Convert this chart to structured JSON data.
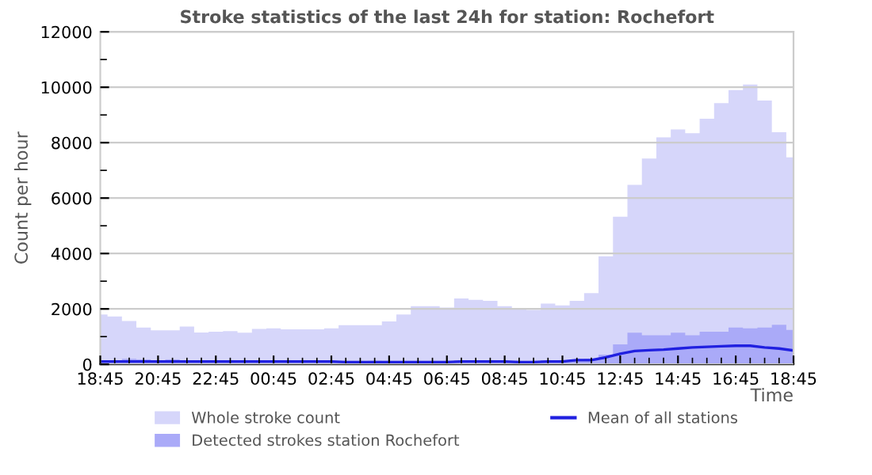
{
  "chart_data": {
    "type": "area",
    "title": "Stroke statistics of the last 24h for station: Rochefort",
    "xlabel": "Time",
    "ylabel": "Count per hour",
    "categories": [
      "18:45",
      null,
      null,
      null,
      "20:45",
      null,
      null,
      null,
      "22:45",
      null,
      null,
      null,
      "00:45",
      null,
      null,
      null,
      "02:45",
      null,
      null,
      null,
      "04:45",
      null,
      null,
      null,
      "06:45",
      null,
      null,
      null,
      "08:45",
      null,
      null,
      null,
      "10:45",
      null,
      null,
      null,
      "12:45",
      null,
      null,
      null,
      "14:45",
      null,
      null,
      null,
      "16:45",
      null,
      null,
      null,
      "18:45"
    ],
    "series": [
      {
        "name": "Whole stroke count",
        "color": "#d6d6fa",
        "values": [
          1800,
          1730,
          1560,
          1330,
          1230,
          1230,
          1360,
          1150,
          1180,
          1200,
          1140,
          1280,
          1300,
          1260,
          1260,
          1260,
          1300,
          1410,
          1410,
          1410,
          1550,
          1800,
          2100,
          2100,
          2050,
          2380,
          2330,
          2290,
          2100,
          2000,
          1960,
          2190,
          2130,
          2290,
          2570,
          3900,
          5330,
          6480,
          7430,
          8190,
          8480,
          8340,
          8860,
          9430,
          9900,
          10100,
          9520,
          8380,
          7470
        ]
      },
      {
        "name": "Detected strokes station Rochefort",
        "color": "#aaaaf8",
        "values": [
          150,
          150,
          200,
          180,
          150,
          180,
          150,
          130,
          150,
          150,
          150,
          150,
          150,
          150,
          130,
          130,
          100,
          100,
          100,
          130,
          100,
          100,
          100,
          100,
          100,
          150,
          150,
          130,
          100,
          120,
          100,
          150,
          150,
          150,
          200,
          350,
          720,
          1140,
          1050,
          1050,
          1140,
          1050,
          1180,
          1180,
          1330,
          1300,
          1330,
          1430,
          1240
        ]
      },
      {
        "name": "Mean of all stations",
        "type": "line",
        "color": "#2020e0",
        "values": [
          100,
          100,
          100,
          100,
          100,
          100,
          100,
          100,
          100,
          100,
          100,
          100,
          100,
          100,
          100,
          100,
          100,
          80,
          80,
          80,
          80,
          80,
          80,
          80,
          80,
          100,
          100,
          100,
          100,
          80,
          80,
          100,
          100,
          150,
          150,
          250,
          380,
          480,
          510,
          530,
          570,
          610,
          630,
          650,
          670,
          670,
          610,
          570,
          500
        ]
      }
    ],
    "ylim": [
      0,
      12000
    ],
    "yticks": [
      0,
      {
        "value": 1000,
        "label": null
      },
      2000,
      {
        "value": 3000,
        "label": null
      },
      4000,
      {
        "value": 5000,
        "label": null
      },
      6000,
      {
        "value": 7000,
        "label": null
      },
      8000,
      {
        "value": 9000,
        "label": null
      },
      10000,
      {
        "value": 11000,
        "label": null
      },
      12000
    ],
    "grid": "y",
    "legend": "bottom"
  }
}
